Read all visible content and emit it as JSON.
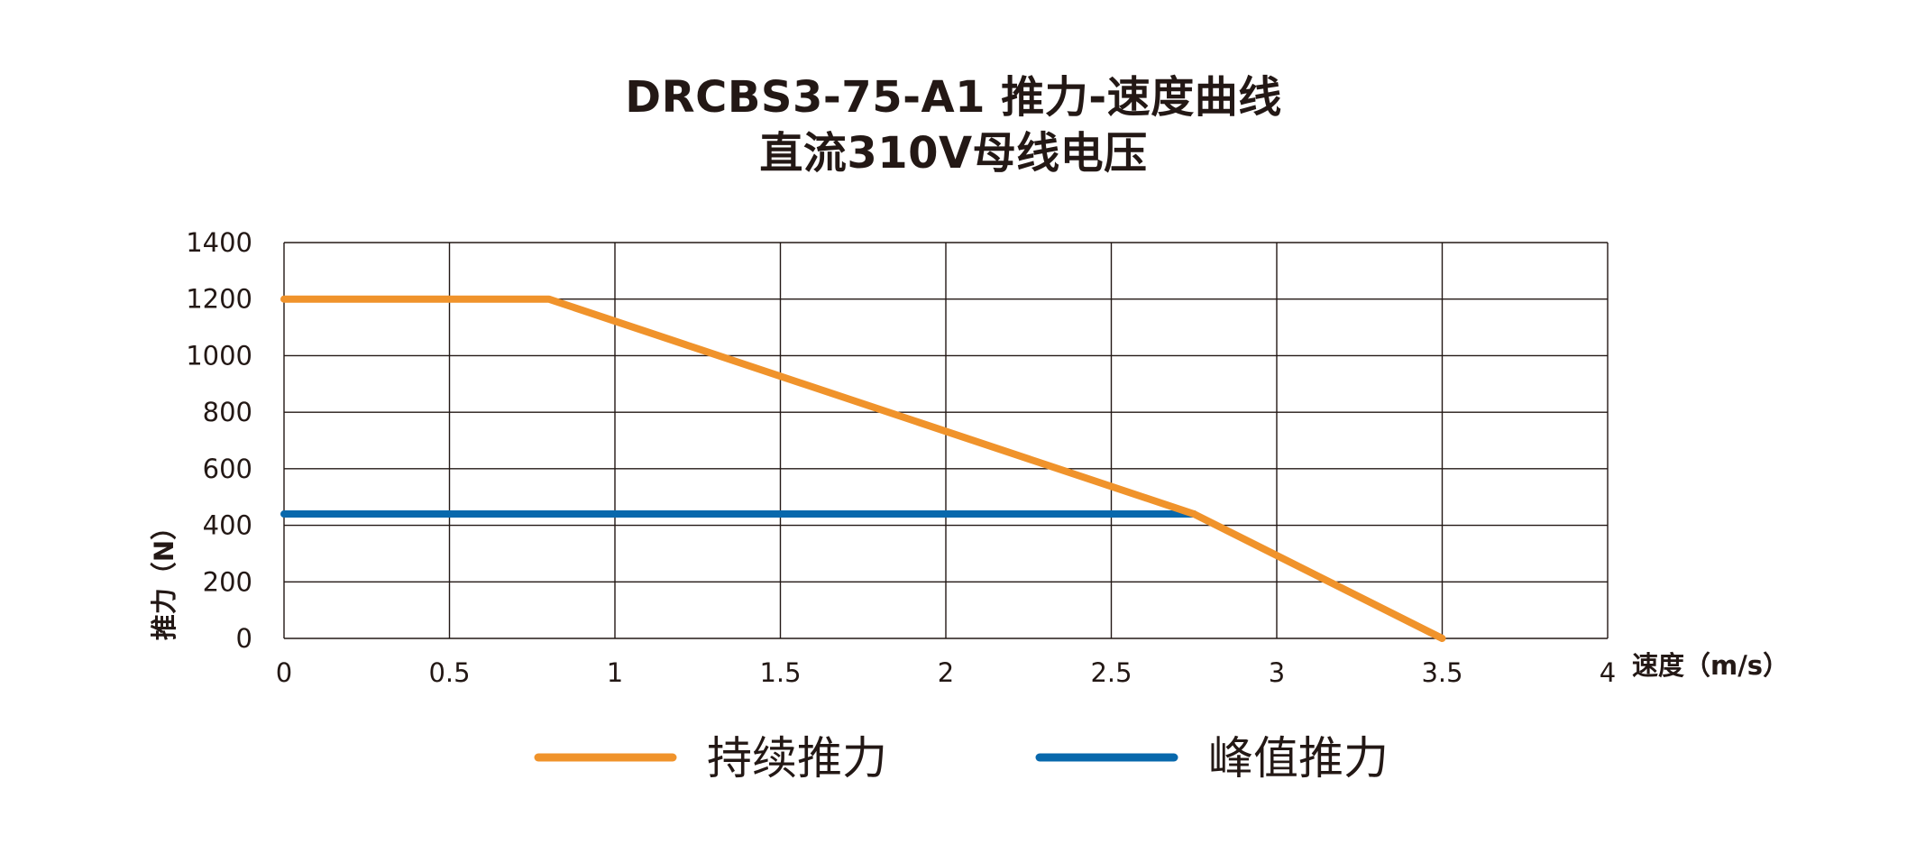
{
  "title_line_1": "DRCBS3-75-A1 推力-速度曲线",
  "title_line_2": "直流310V母线电压",
  "colors": {
    "continuous": "#F0932B",
    "peak": "#0868AC",
    "grid": "#231815",
    "text": "#231815"
  },
  "chart_data": {
    "type": "line",
    "xlabel": "速度（m/s）",
    "ylabel": "推力（N）",
    "xlim": [
      0,
      4
    ],
    "ylim": [
      0,
      1400
    ],
    "x_ticks": [
      0,
      0.5,
      1,
      1.5,
      2,
      2.5,
      3,
      3.5,
      4
    ],
    "x_tick_labels": [
      "0",
      "0.5",
      "1",
      "1.5",
      "2",
      "2.5",
      "3",
      "3.5",
      "4"
    ],
    "y_ticks": [
      0,
      200,
      400,
      600,
      800,
      1000,
      1200,
      1400
    ],
    "y_tick_labels": [
      "0",
      "200",
      "400",
      "600",
      "800",
      "1000",
      "1200",
      "1400"
    ],
    "grid": true,
    "legend_position": "bottom",
    "series": [
      {
        "name": "持续推力",
        "color_key": "continuous",
        "points": [
          [
            0,
            1200
          ],
          [
            0.8,
            1200
          ],
          [
            2.75,
            440
          ],
          [
            3.5,
            0
          ]
        ]
      },
      {
        "name": "峰值推力",
        "color_key": "peak",
        "points": [
          [
            0,
            440
          ],
          [
            2.75,
            440
          ]
        ]
      }
    ]
  }
}
